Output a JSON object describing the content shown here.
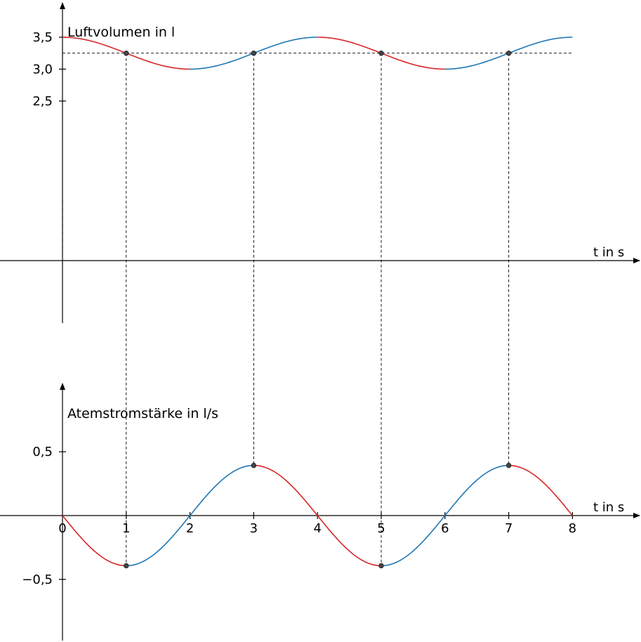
{
  "colors": {
    "increasing": "#2077b4",
    "decreasing": "#d62728",
    "axis": "#000000",
    "guide": "#000000",
    "point": "#444444"
  },
  "chart_data": [
    {
      "type": "line",
      "ylabel": "Luftvolumen in l",
      "xlabel": "t in s",
      "y_ticks": [
        {
          "value": 3.5,
          "label": "3,5"
        },
        {
          "value": 3.0,
          "label": "3,0"
        },
        {
          "value": 2.5,
          "label": "2,5"
        }
      ],
      "xlim": [
        0,
        8
      ],
      "formula": "V(t) = 3.25 + 0.25 * cos(pi * t / 2)",
      "x": [
        0,
        0.5,
        1,
        1.5,
        2,
        2.5,
        3,
        3.5,
        4,
        4.5,
        5,
        5.5,
        6,
        6.5,
        7,
        7.5,
        8
      ],
      "values": [
        3.5,
        3.427,
        3.25,
        3.073,
        3.0,
        3.073,
        3.25,
        3.427,
        3.5,
        3.427,
        3.25,
        3.073,
        3.0,
        3.073,
        3.25,
        3.427,
        3.5
      ],
      "marked_points": [
        {
          "x": 1,
          "y": 3.25
        },
        {
          "x": 3,
          "y": 3.25
        },
        {
          "x": 5,
          "y": 3.25
        },
        {
          "x": 7,
          "y": 3.25
        }
      ],
      "reference_line_y": 3.25
    },
    {
      "type": "line",
      "ylabel": "Atemstromstärke in l/s",
      "xlabel": "t in s",
      "x_ticks": [
        {
          "value": 0,
          "label": "0"
        },
        {
          "value": 1,
          "label": "1"
        },
        {
          "value": 2,
          "label": "2"
        },
        {
          "value": 3,
          "label": "3"
        },
        {
          "value": 4,
          "label": "4"
        },
        {
          "value": 5,
          "label": "5"
        },
        {
          "value": 6,
          "label": "6"
        },
        {
          "value": 7,
          "label": "7"
        },
        {
          "value": 8,
          "label": "8"
        }
      ],
      "y_ticks": [
        {
          "value": 0.5,
          "label": "0,5"
        },
        {
          "value": -0.5,
          "label": "−0,5"
        }
      ],
      "xlim": [
        0,
        8
      ],
      "formula": "V'(t) = -0.393 * sin(pi * t / 2)",
      "x": [
        0,
        0.5,
        1,
        1.5,
        2,
        2.5,
        3,
        3.5,
        4,
        4.5,
        5,
        5.5,
        6,
        6.5,
        7,
        7.5,
        8
      ],
      "values": [
        0,
        -0.278,
        -0.393,
        -0.278,
        0,
        0.278,
        0.393,
        0.278,
        0,
        -0.278,
        -0.393,
        -0.278,
        0,
        0.278,
        0.393,
        0.278,
        0
      ],
      "marked_points": [
        {
          "x": 1,
          "y": -0.393
        },
        {
          "x": 3,
          "y": 0.393
        },
        {
          "x": 5,
          "y": -0.393
        },
        {
          "x": 7,
          "y": 0.393
        }
      ]
    }
  ]
}
